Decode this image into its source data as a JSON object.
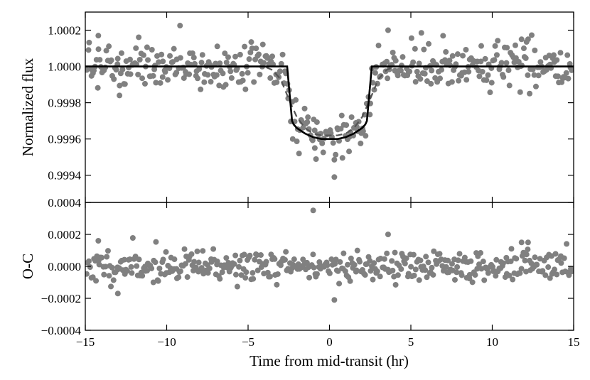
{
  "chart_data": [
    {
      "type": "scatter",
      "panel": "top",
      "title": "",
      "xlabel": "",
      "ylabel": "Normalized flux",
      "xlim": [
        -15,
        15
      ],
      "ylim": [
        0.99925,
        1.0003
      ],
      "yticks": [
        0.9994,
        0.9996,
        0.9998,
        1.0,
        1.0002
      ],
      "ytick_labels": [
        "0.9994",
        "0.9996",
        "0.9998",
        "1.0000",
        "1.0002"
      ],
      "grid": false,
      "colors": {
        "points": "#808080",
        "model_solid": "#000000",
        "model_dashed": "#555555"
      },
      "series": [
        {
          "style": "points",
          "seed": 7,
          "n_points": 420,
          "scatter_sigma": 6e-05,
          "highlight_points": [
            {
              "x": -14.2,
              "y": 1.00017
            },
            {
              "x": -12.9,
              "y": 0.99984
            },
            {
              "x": -0.9,
              "y": 0.99955
            },
            {
              "x": 0.3,
              "y": 0.99939
            },
            {
              "x": 3.6,
              "y": 1.0002
            },
            {
              "x": 11.8,
              "y": 1.00015
            },
            {
              "x": 12.2,
              "y": 1.00015
            }
          ]
        },
        {
          "style": "solid-line",
          "x": [
            -15,
            -2.6,
            -2.45,
            -2.3,
            -2.2,
            -2.0,
            -1.5,
            -1.0,
            -0.5,
            0.0,
            0.5,
            1.0,
            1.5,
            2.0,
            2.2,
            2.3,
            2.45,
            2.6,
            15
          ],
          "y": [
            1.0,
            1.0,
            0.99985,
            0.9997,
            0.99968,
            0.99966,
            0.99963,
            0.99961,
            0.9996,
            0.9996,
            0.9996,
            0.99961,
            0.99963,
            0.99966,
            0.99968,
            0.9997,
            0.99985,
            1.0,
            1.0
          ]
        },
        {
          "style": "dashed-line",
          "x": [
            -15,
            -4.0,
            -3.5,
            -3.0,
            -2.5,
            -2.0,
            -1.5,
            -1.0,
            -0.5,
            0.0,
            0.5,
            1.0,
            1.5,
            2.0,
            2.5,
            3.0,
            3.5,
            4.0,
            15
          ],
          "y": [
            1.0,
            1.0,
            0.99998,
            0.99993,
            0.99982,
            0.99972,
            0.99966,
            0.99963,
            0.99962,
            0.99962,
            0.99962,
            0.99963,
            0.99966,
            0.99972,
            0.99982,
            0.99993,
            0.99998,
            1.0,
            1.0
          ]
        }
      ]
    },
    {
      "type": "scatter",
      "panel": "bottom",
      "title": "",
      "xlabel": "Time from mid-transit (hr)",
      "ylabel": "O-C",
      "xlim": [
        -15,
        15
      ],
      "ylim": [
        -0.0004,
        0.0004
      ],
      "xticks": [
        -15,
        -10,
        -5,
        0,
        5,
        10,
        15
      ],
      "xtick_labels": [
        "−15",
        "−10",
        "−5",
        "0",
        "5",
        "10",
        "15"
      ],
      "yticks": [
        -0.0004,
        -0.0002,
        0.0,
        0.0002,
        0.0004
      ],
      "ytick_labels": [
        "−0.0004",
        "−0.0002",
        "0.0000",
        "0.0002",
        "0.0004"
      ],
      "grid": false,
      "series": [
        {
          "style": "points",
          "seed": 11,
          "n_points": 420,
          "scatter_sigma": 5e-05,
          "highlight_points": [
            {
              "x": -14.2,
              "y": 0.00016
            },
            {
              "x": -13.0,
              "y": -0.00017
            },
            {
              "x": -1.0,
              "y": 0.00035
            },
            {
              "x": 0.3,
              "y": -0.00021
            },
            {
              "x": 3.6,
              "y": 0.0002
            },
            {
              "x": 11.8,
              "y": 0.00015
            },
            {
              "x": 12.2,
              "y": 0.00015
            }
          ]
        }
      ]
    }
  ]
}
